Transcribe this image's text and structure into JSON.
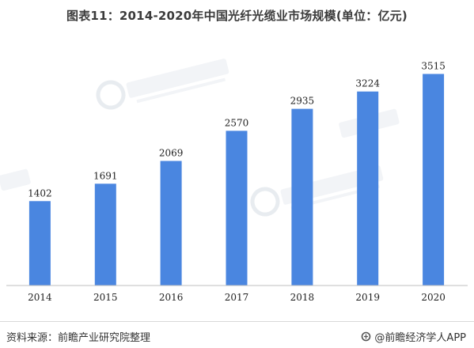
{
  "title": "图表11：2014-2020年中国光纤光缆业市场规模(单位：亿元)",
  "footer": {
    "source": "资料来源：前瞻产业研究院整理",
    "brand": "@前瞻经济学人APP"
  },
  "colors": {
    "bar": "#4a86e0",
    "axis": "#bfbfbf",
    "watermark": "#d6dce4"
  },
  "chart_data": {
    "type": "bar",
    "title": "图表11：2014-2020年中国光纤光缆业市场规模(单位：亿元)",
    "xlabel": "",
    "ylabel": "",
    "categories": [
      "2014",
      "2015",
      "2016",
      "2017",
      "2018",
      "2019",
      "2020"
    ],
    "values": [
      1402,
      1691,
      2069,
      2570,
      2935,
      3224,
      3515
    ],
    "ylim": [
      0,
      4000
    ],
    "grid": false,
    "legend": "none"
  }
}
